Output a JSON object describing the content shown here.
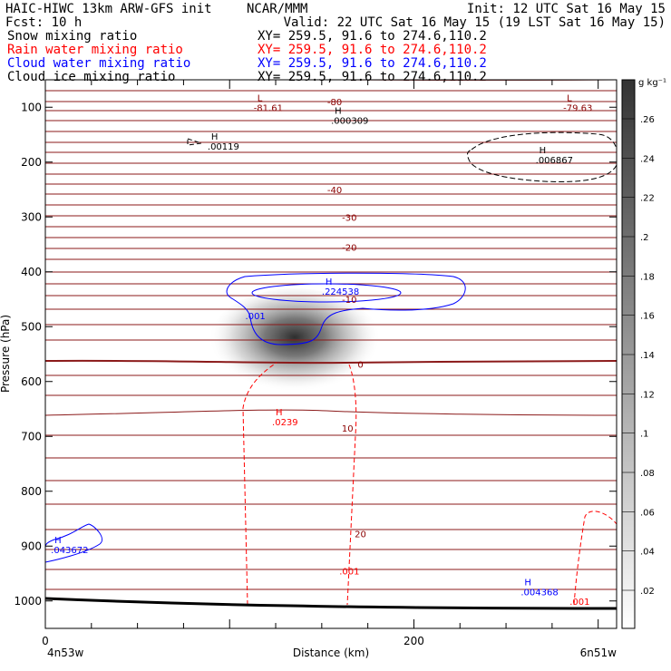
{
  "header": {
    "model": "HAIC-HIWC 13km ARW-GFS init",
    "org": "NCAR/MMM",
    "init": "Init: 12 UTC Sat 16 May 15",
    "fcst": "Fcst:   10 h",
    "valid": "Valid: 22 UTC Sat 16 May 15 (19 LST Sat 16 May 15)"
  },
  "fields": [
    {
      "name": "Snow mixing ratio",
      "xy": "XY= 259.5, 91.6 to 274.6,110.2",
      "color": "#000000"
    },
    {
      "name": "Rain water mixing ratio",
      "xy": "XY= 259.5, 91.6 to 274.6,110.2",
      "color": "#ff0000"
    },
    {
      "name": "Cloud water mixing ratio",
      "xy": "XY= 259.5, 91.6 to 274.6,110.2",
      "color": "#0000ff"
    },
    {
      "name": "Cloud ice mixing ratio",
      "xy": "XY= 259.5, 91.6 to 274.6,110.2",
      "color": "#000000"
    }
  ],
  "colorbar": {
    "unit": "g kg⁻¹",
    "ticks": [
      ".26",
      ".24",
      ".22",
      ".2",
      ".18",
      ".16",
      ".14",
      ".12",
      ".1",
      ".08",
      ".06",
      ".04",
      ".02"
    ]
  },
  "chart_data": {
    "type": "contour",
    "xlabel": "Distance (km)",
    "ylabel": "Pressure (hPa)",
    "xlim": [
      0,
      310
    ],
    "ylim": [
      1050,
      50
    ],
    "x_ticks": [
      0,
      200
    ],
    "y_ticks": [
      100,
      200,
      300,
      400,
      500,
      600,
      700,
      800,
      900,
      1000
    ],
    "x_endpoints": {
      "left": "4n53w",
      "right": "6n51w"
    },
    "temperature_levels": [
      -80,
      -40,
      -30,
      -20,
      -10,
      0,
      10,
      20
    ],
    "contour_labels": [
      {
        "text": "-80",
        "x": 157,
        "p": 90,
        "color": "#8b0000"
      },
      {
        "text": "-40",
        "x": 157,
        "p": 250,
        "color": "#8b0000"
      },
      {
        "text": "-30",
        "x": 165,
        "p": 300,
        "color": "#8b0000"
      },
      {
        "text": "-20",
        "x": 165,
        "p": 355,
        "color": "#8b0000"
      },
      {
        "text": "-10",
        "x": 165,
        "p": 450,
        "color": "#8b0000"
      },
      {
        "text": "0",
        "x": 171,
        "p": 568,
        "color": "#8b0000"
      },
      {
        "text": "10",
        "x": 164,
        "p": 685,
        "color": "#8b0000"
      },
      {
        "text": "20",
        "x": 171,
        "p": 877,
        "color": "#8b0000"
      },
      {
        "text": ".001",
        "x": 165,
        "p": 945,
        "color": "#ff0000"
      },
      {
        "text": ".001",
        "x": 114,
        "p": 480,
        "color": "#0000ff"
      },
      {
        "text": ".001",
        "x": 290,
        "p": 1000,
        "color": "#ff0000"
      }
    ],
    "extrema": [
      {
        "type": "L",
        "value": "-81.61",
        "x": 115,
        "p": 102,
        "color": "#8b0000"
      },
      {
        "type": "H",
        "value": ".000309",
        "x": 157,
        "p": 125,
        "color": "#000000"
      },
      {
        "type": "L",
        "value": "-79.63",
        "x": 283,
        "p": 102,
        "color": "#8b0000"
      },
      {
        "type": "H",
        "value": ".00119",
        "x": 90,
        "p": 172,
        "color": "#000000"
      },
      {
        "type": "H",
        "value": ".006867",
        "x": 268,
        "p": 197,
        "color": "#000000"
      },
      {
        "type": "H",
        "value": ".224538",
        "x": 152,
        "p": 437,
        "color": "#0000ff"
      },
      {
        "type": "H",
        "value": ".0239",
        "x": 125,
        "p": 675,
        "color": "#ff0000"
      },
      {
        "type": "H",
        "value": ".043672",
        "x": 5,
        "p": 908,
        "color": "#0000ff"
      },
      {
        "type": "H",
        "value": ".004368",
        "x": 260,
        "p": 985,
        "color": "#0000ff"
      }
    ]
  }
}
